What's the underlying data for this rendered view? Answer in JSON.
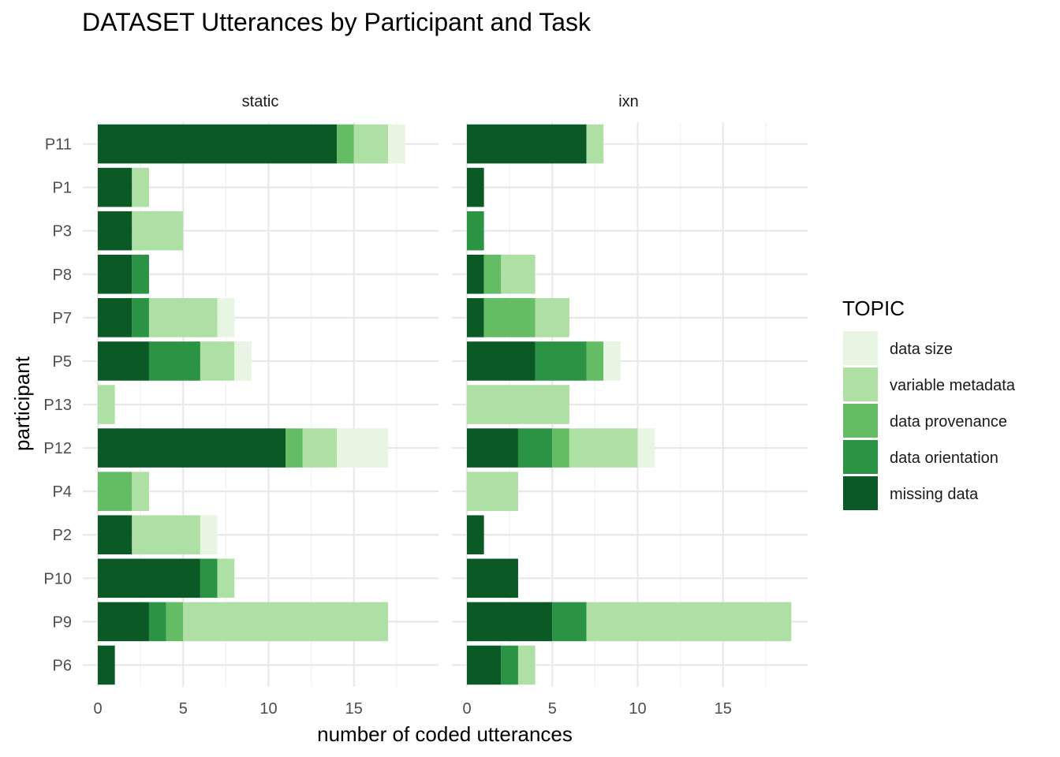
{
  "chart_data": {
    "type": "bar",
    "orientation": "horizontal",
    "stacked": true,
    "title": "DATASET Utterances by Participant and Task",
    "xlabel": "number of coded utterances",
    "ylabel": "participant",
    "xlim": [
      0,
      19
    ],
    "x_ticks": [
      0,
      5,
      10,
      15
    ],
    "grid": true,
    "legend": {
      "title": "TOPIC",
      "placement": "right",
      "order": [
        "data size",
        "variable metadata",
        "data provenance",
        "data orientation",
        "missing data"
      ]
    },
    "colors": {
      "missing data": "#0b5a25",
      "data orientation": "#2a9444",
      "data provenance": "#64bc64",
      "variable metadata": "#aedfa4",
      "data size": "#e8f5e2"
    },
    "stack_order": [
      "missing data",
      "data orientation",
      "data provenance",
      "variable metadata",
      "data size"
    ],
    "participants": [
      "P11",
      "P1",
      "P3",
      "P8",
      "P7",
      "P5",
      "P13",
      "P12",
      "P4",
      "P2",
      "P10",
      "P9",
      "P6"
    ],
    "panels": [
      {
        "name": "static",
        "values": {
          "P11": {
            "missing data": 14,
            "data orientation": 0,
            "data provenance": 1,
            "variable metadata": 2,
            "data size": 1
          },
          "P1": {
            "missing data": 2,
            "data orientation": 0,
            "data provenance": 0,
            "variable metadata": 1,
            "data size": 0
          },
          "P3": {
            "missing data": 2,
            "data orientation": 0,
            "data provenance": 0,
            "variable metadata": 3,
            "data size": 0
          },
          "P8": {
            "missing data": 2,
            "data orientation": 1,
            "data provenance": 0,
            "variable metadata": 0,
            "data size": 0
          },
          "P7": {
            "missing data": 2,
            "data orientation": 1,
            "data provenance": 0,
            "variable metadata": 4,
            "data size": 1
          },
          "P5": {
            "missing data": 3,
            "data orientation": 3,
            "data provenance": 0,
            "variable metadata": 2,
            "data size": 1
          },
          "P13": {
            "missing data": 0,
            "data orientation": 0,
            "data provenance": 0,
            "variable metadata": 1,
            "data size": 0
          },
          "P12": {
            "missing data": 11,
            "data orientation": 0,
            "data provenance": 1,
            "variable metadata": 2,
            "data size": 3
          },
          "P4": {
            "missing data": 0,
            "data orientation": 0,
            "data provenance": 2,
            "variable metadata": 1,
            "data size": 0
          },
          "P2": {
            "missing data": 2,
            "data orientation": 0,
            "data provenance": 0,
            "variable metadata": 4,
            "data size": 1
          },
          "P10": {
            "missing data": 6,
            "data orientation": 1,
            "data provenance": 0,
            "variable metadata": 1,
            "data size": 0
          },
          "P9": {
            "missing data": 3,
            "data orientation": 1,
            "data provenance": 1,
            "variable metadata": 12,
            "data size": 0
          },
          "P6": {
            "missing data": 1,
            "data orientation": 0,
            "data provenance": 0,
            "variable metadata": 0,
            "data size": 0
          }
        }
      },
      {
        "name": "ixn",
        "values": {
          "P11": {
            "missing data": 7,
            "data orientation": 0,
            "data provenance": 0,
            "variable metadata": 1,
            "data size": 0
          },
          "P1": {
            "missing data": 1,
            "data orientation": 0,
            "data provenance": 0,
            "variable metadata": 0,
            "data size": 0
          },
          "P3": {
            "missing data": 0,
            "data orientation": 1,
            "data provenance": 0,
            "variable metadata": 0,
            "data size": 0
          },
          "P8": {
            "missing data": 1,
            "data orientation": 0,
            "data provenance": 1,
            "variable metadata": 2,
            "data size": 0
          },
          "P7": {
            "missing data": 1,
            "data orientation": 0,
            "data provenance": 3,
            "variable metadata": 2,
            "data size": 0
          },
          "P5": {
            "missing data": 4,
            "data orientation": 3,
            "data provenance": 1,
            "variable metadata": 0,
            "data size": 1
          },
          "P13": {
            "missing data": 0,
            "data orientation": 0,
            "data provenance": 0,
            "variable metadata": 6,
            "data size": 0
          },
          "P12": {
            "missing data": 3,
            "data orientation": 2,
            "data provenance": 1,
            "variable metadata": 4,
            "data size": 1
          },
          "P4": {
            "missing data": 0,
            "data orientation": 0,
            "data provenance": 0,
            "variable metadata": 3,
            "data size": 0
          },
          "P2": {
            "missing data": 1,
            "data orientation": 0,
            "data provenance": 0,
            "variable metadata": 0,
            "data size": 0
          },
          "P10": {
            "missing data": 3,
            "data orientation": 0,
            "data provenance": 0,
            "variable metadata": 0,
            "data size": 0
          },
          "P9": {
            "missing data": 5,
            "data orientation": 2,
            "data provenance": 0,
            "variable metadata": 12,
            "data size": 0
          },
          "P6": {
            "missing data": 2,
            "data orientation": 1,
            "data provenance": 0,
            "variable metadata": 1,
            "data size": 0
          }
        }
      }
    ]
  }
}
